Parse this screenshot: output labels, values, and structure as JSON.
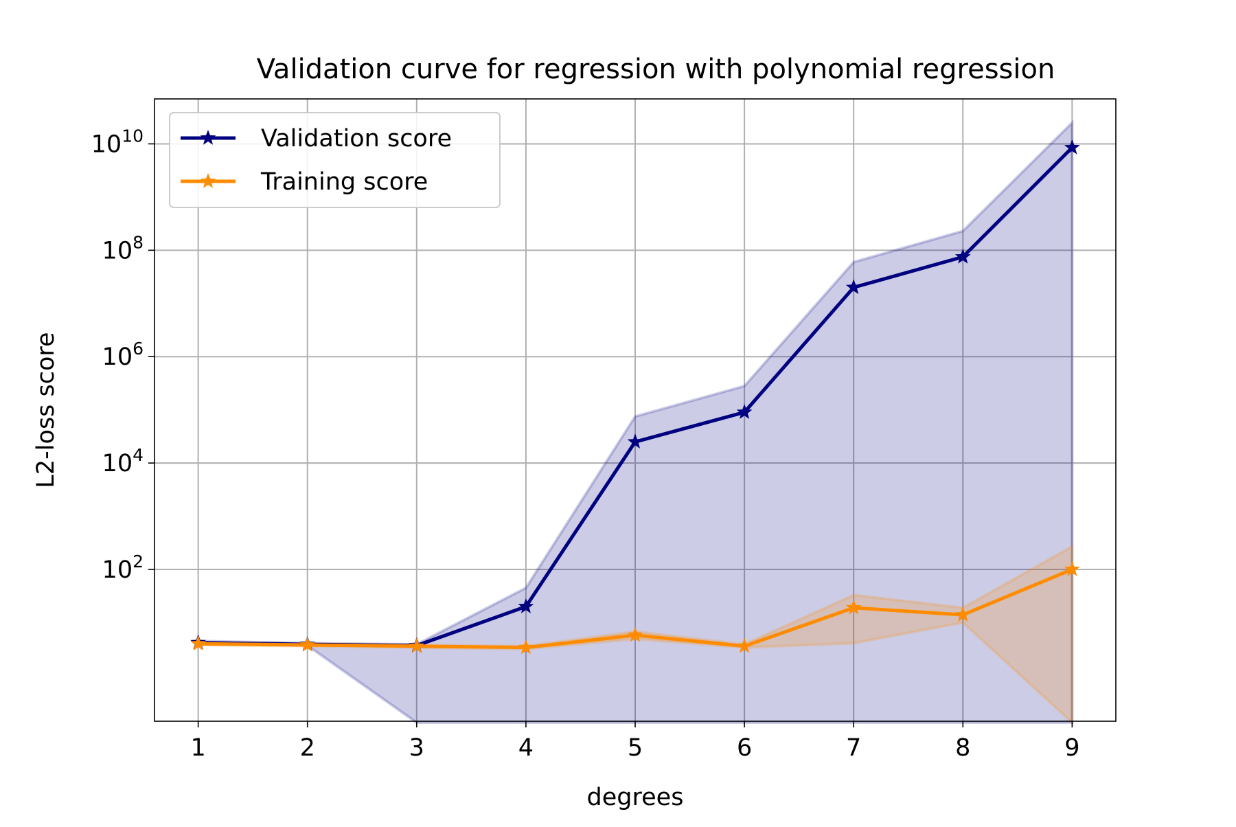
{
  "chart_data": {
    "type": "line",
    "title": "Validation curve for regression with polynomial regression",
    "xlabel": "degrees",
    "ylabel": "L2-loss score",
    "x": [
      1,
      2,
      3,
      4,
      5,
      6,
      7,
      8,
      9
    ],
    "x_ticks": [
      "1",
      "2",
      "3",
      "4",
      "5",
      "6",
      "7",
      "8",
      "9"
    ],
    "xlim": [
      0.6,
      9.4
    ],
    "y_scale": "log",
    "ylim": [
      0.14,
      70000000000
    ],
    "y_ticks": [
      {
        "value": 100,
        "base": "10",
        "exp": "2"
      },
      {
        "value": 10000,
        "base": "10",
        "exp": "4"
      },
      {
        "value": 1000000,
        "base": "10",
        "exp": "6"
      },
      {
        "value": 100000000,
        "base": "10",
        "exp": "8"
      },
      {
        "value": 10000000000,
        "base": "10",
        "exp": "10"
      }
    ],
    "grid": true,
    "legend_position": "upper-left",
    "series": [
      {
        "name": "Validation score",
        "color": "#000080",
        "marker": "star",
        "values": [
          4.2,
          3.9,
          3.7,
          20,
          25000,
          90000,
          20000000,
          75000000,
          8500000000
        ],
        "band_upper": [
          4.5,
          4.1,
          3.9,
          45,
          75000,
          280000,
          60000000,
          230000000,
          25000000000
        ],
        "band_lower": [
          3.9,
          3.7,
          0.1,
          0.1,
          0.1,
          0.1,
          0.1,
          0.1,
          0.1
        ]
      },
      {
        "name": "Training score",
        "color": "#FF8C00",
        "marker": "star",
        "values": [
          4.0,
          3.8,
          3.6,
          3.4,
          5.8,
          3.6,
          19,
          14,
          100
        ],
        "band_upper": [
          4.3,
          4.0,
          3.8,
          3.6,
          6.8,
          3.9,
          33,
          19,
          270
        ],
        "band_lower": [
          3.8,
          3.6,
          3.4,
          3.2,
          4.9,
          3.4,
          4.1,
          10,
          0.1
        ]
      }
    ]
  }
}
